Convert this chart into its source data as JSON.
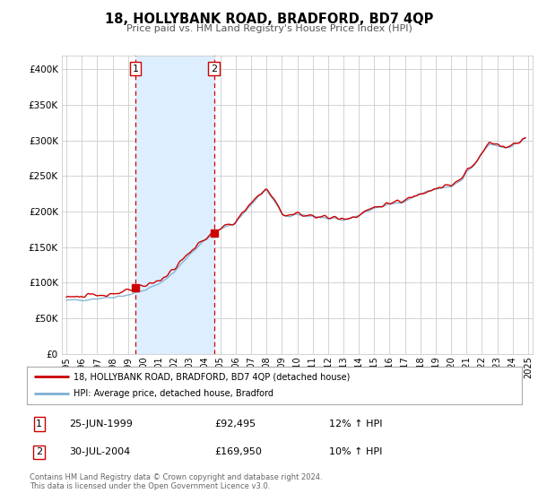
{
  "title": "18, HOLLYBANK ROAD, BRADFORD, BD7 4QP",
  "subtitle": "Price paid vs. HM Land Registry's House Price Index (HPI)",
  "legend_line1": "18, HOLLYBANK ROAD, BRADFORD, BD7 4QP (detached house)",
  "legend_line2": "HPI: Average price, detached house, Bradford",
  "annotation1_date": "25-JUN-1999",
  "annotation1_price": "£92,495",
  "annotation1_hpi": "12% ↑ HPI",
  "annotation1_year": 1999.49,
  "annotation1_value": 92495,
  "annotation2_date": "30-JUL-2004",
  "annotation2_price": "£169,950",
  "annotation2_hpi": "10% ↑ HPI",
  "annotation2_year": 2004.58,
  "annotation2_value": 169950,
  "red_color": "#cc0000",
  "blue_color": "#7bafd4",
  "shade_color": "#ddeeff",
  "background_color": "#ffffff",
  "grid_color": "#cccccc",
  "footer": "Contains HM Land Registry data © Crown copyright and database right 2024.\nThis data is licensed under the Open Government Licence v3.0.",
  "ylim": [
    0,
    420000
  ],
  "yticks": [
    0,
    50000,
    100000,
    150000,
    200000,
    250000,
    300000,
    350000,
    400000
  ]
}
